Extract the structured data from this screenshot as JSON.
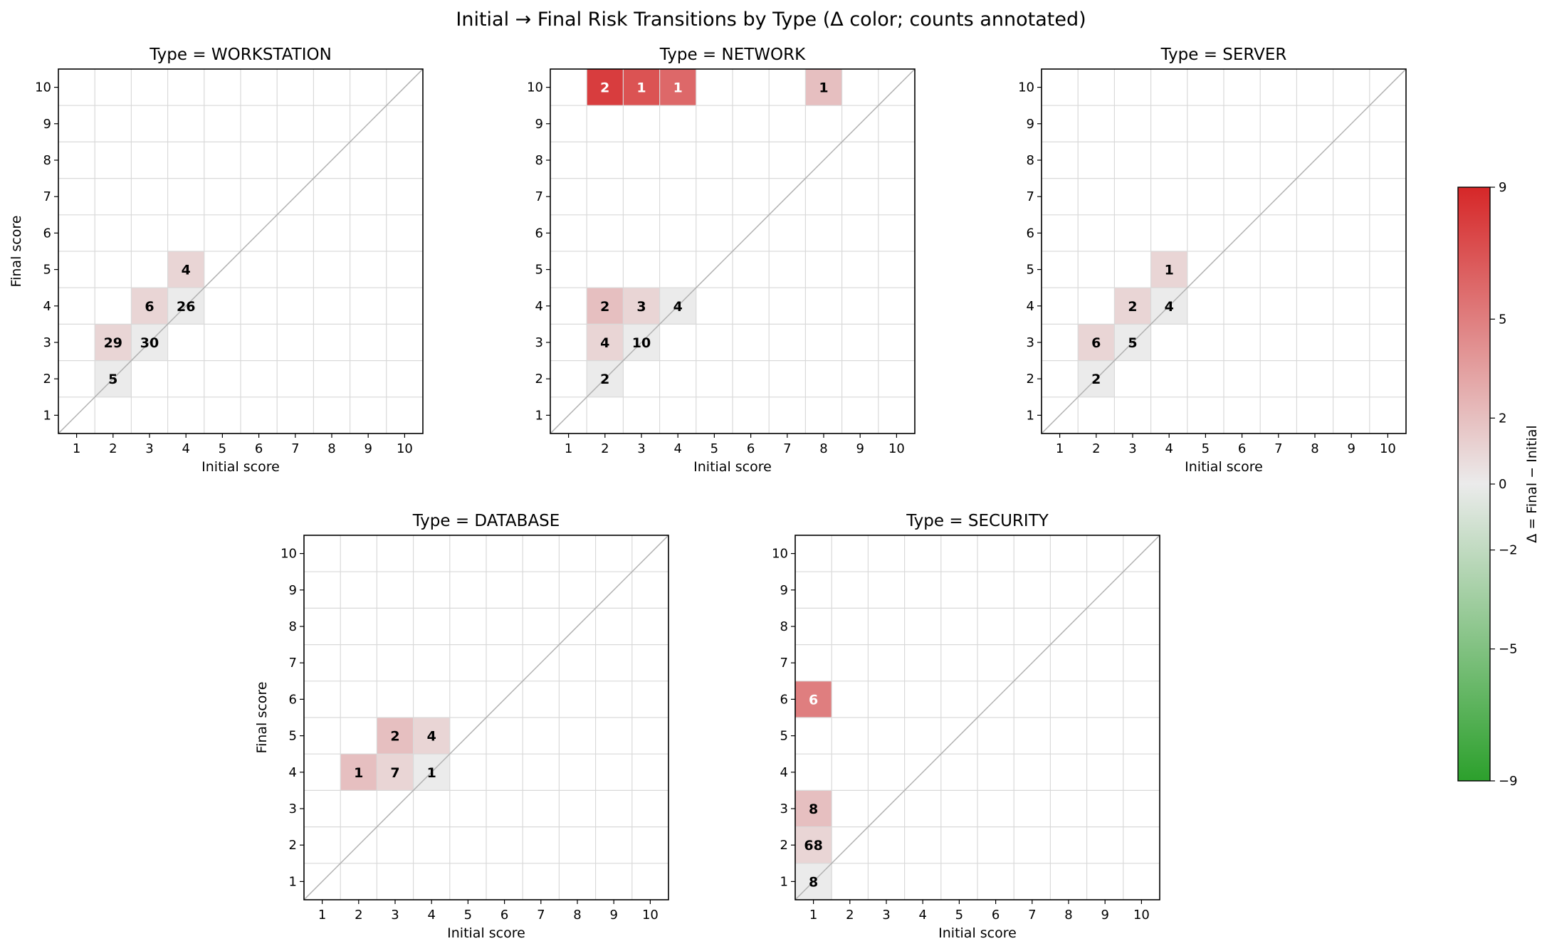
{
  "figure_title": "Initial → Final Risk Transitions by Type (Δ color; counts annotated)",
  "colors": {
    "negative": "#2ca02c",
    "neutral": "#ebebeb",
    "positive": "#d62728",
    "grid": "#d9d9d9",
    "diagonal": "#b0b0b0",
    "axis": "#000000"
  },
  "colorbar": {
    "label": "Δ = Final − Initial",
    "min": -9,
    "max": 9,
    "ticks": [
      9,
      5,
      2,
      0,
      -2,
      -5,
      -9
    ],
    "tick_labels": [
      "9",
      "5",
      "2",
      "0",
      "−2",
      "−5",
      "−9"
    ]
  },
  "chart_data": [
    {
      "type": "heatmap",
      "title": "Type = WORKSTATION",
      "xlabel": "Initial score",
      "ylabel": "Final score",
      "x_ticks": [
        "1",
        "2",
        "3",
        "4",
        "5",
        "6",
        "7",
        "8",
        "9",
        "10"
      ],
      "y_ticks": [
        "1",
        "2",
        "3",
        "4",
        "5",
        "6",
        "7",
        "8",
        "9",
        "10"
      ],
      "cells": [
        {
          "initial": 2,
          "final": 2,
          "count": 5,
          "label": "5"
        },
        {
          "initial": 2,
          "final": 3,
          "count": 29,
          "label": "29"
        },
        {
          "initial": 3,
          "final": 3,
          "count": 30,
          "label": "30"
        },
        {
          "initial": 3,
          "final": 4,
          "count": 6,
          "label": "6"
        },
        {
          "initial": 4,
          "final": 4,
          "count": 26,
          "label": "26"
        },
        {
          "initial": 4,
          "final": 5,
          "count": 4,
          "label": "4"
        }
      ]
    },
    {
      "type": "heatmap",
      "title": "Type = NETWORK",
      "xlabel": "Initial score",
      "ylabel": "",
      "x_ticks": [
        "1",
        "2",
        "3",
        "4",
        "5",
        "6",
        "7",
        "8",
        "9",
        "10"
      ],
      "y_ticks": [
        "1",
        "2",
        "3",
        "4",
        "5",
        "6",
        "7",
        "8",
        "9",
        "10"
      ],
      "cells": [
        {
          "initial": 2,
          "final": 10,
          "count": 2,
          "label": "2"
        },
        {
          "initial": 3,
          "final": 10,
          "count": 1,
          "label": "1"
        },
        {
          "initial": 4,
          "final": 10,
          "count": 1,
          "label": "1"
        },
        {
          "initial": 8,
          "final": 10,
          "count": 1,
          "label": "1"
        },
        {
          "initial": 2,
          "final": 4,
          "count": 2,
          "label": "2"
        },
        {
          "initial": 3,
          "final": 4,
          "count": 3,
          "label": "3"
        },
        {
          "initial": 4,
          "final": 4,
          "count": 4,
          "label": "4"
        },
        {
          "initial": 2,
          "final": 3,
          "count": 4,
          "label": "4"
        },
        {
          "initial": 3,
          "final": 3,
          "count": 10,
          "label": "10"
        },
        {
          "initial": 2,
          "final": 2,
          "count": 2,
          "label": "2"
        }
      ]
    },
    {
      "type": "heatmap",
      "title": "Type = SERVER",
      "xlabel": "Initial score",
      "ylabel": "",
      "x_ticks": [
        "1",
        "2",
        "3",
        "4",
        "5",
        "6",
        "7",
        "8",
        "9",
        "10"
      ],
      "y_ticks": [
        "1",
        "2",
        "3",
        "4",
        "5",
        "6",
        "7",
        "8",
        "9",
        "10"
      ],
      "cells": [
        {
          "initial": 4,
          "final": 5,
          "count": 1,
          "label": "1"
        },
        {
          "initial": 3,
          "final": 4,
          "count": 2,
          "label": "2"
        },
        {
          "initial": 4,
          "final": 4,
          "count": 4,
          "label": "4"
        },
        {
          "initial": 2,
          "final": 3,
          "count": 6,
          "label": "6"
        },
        {
          "initial": 3,
          "final": 3,
          "count": 5,
          "label": "5"
        },
        {
          "initial": 2,
          "final": 2,
          "count": 2,
          "label": "2"
        }
      ]
    },
    {
      "type": "heatmap",
      "title": "Type = DATABASE",
      "xlabel": "Initial score",
      "ylabel": "Final score",
      "x_ticks": [
        "1",
        "2",
        "3",
        "4",
        "5",
        "6",
        "7",
        "8",
        "9",
        "10"
      ],
      "y_ticks": [
        "1",
        "2",
        "3",
        "4",
        "5",
        "6",
        "7",
        "8",
        "9",
        "10"
      ],
      "cells": [
        {
          "initial": 3,
          "final": 5,
          "count": 2,
          "label": "2"
        },
        {
          "initial": 4,
          "final": 5,
          "count": 4,
          "label": "4"
        },
        {
          "initial": 2,
          "final": 4,
          "count": 1,
          "label": "1"
        },
        {
          "initial": 3,
          "final": 4,
          "count": 7,
          "label": "7"
        },
        {
          "initial": 4,
          "final": 4,
          "count": 1,
          "label": "1"
        }
      ]
    },
    {
      "type": "heatmap",
      "title": "Type = SECURITY",
      "xlabel": "Initial score",
      "ylabel": "",
      "x_ticks": [
        "1",
        "2",
        "3",
        "4",
        "5",
        "6",
        "7",
        "8",
        "9",
        "10"
      ],
      "y_ticks": [
        "1",
        "2",
        "3",
        "4",
        "5",
        "6",
        "7",
        "8",
        "9",
        "10"
      ],
      "cells": [
        {
          "initial": 1,
          "final": 6,
          "count": 6,
          "label": "6"
        },
        {
          "initial": 1,
          "final": 3,
          "count": 8,
          "label": "8"
        },
        {
          "initial": 1,
          "final": 2,
          "count": 68,
          "label": "68"
        },
        {
          "initial": 1,
          "final": 1,
          "count": 8,
          "label": "8"
        }
      ]
    }
  ]
}
